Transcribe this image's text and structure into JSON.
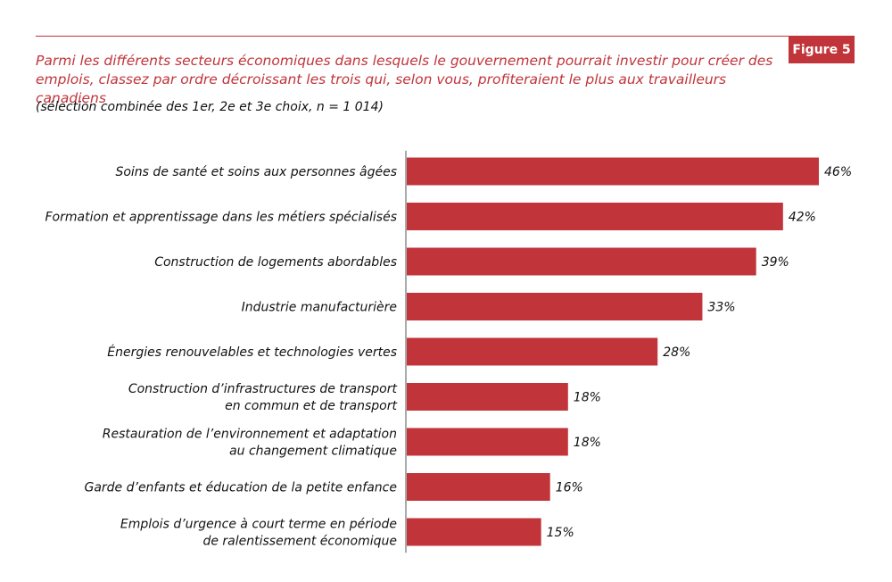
{
  "figure_label": "Figure 5",
  "colors": {
    "accent": "#c0343a",
    "bar": "#c0343a",
    "text": "#111111",
    "axis": "#555555"
  },
  "chart_data": {
    "type": "bar",
    "orientation": "horizontal",
    "title": "Parmi les différents secteurs économiques dans lesquels le gouvernement pourrait investir pour créer des emplois, classez par ordre décroissant les trois qui, selon vous, profiteraient le plus aux travailleurs canadiens",
    "subtitle": "(sélection combinée des 1er, 2e et 3e choix, n = 1 014)",
    "xlim": [
      0,
      46
    ],
    "grid": false,
    "categories": [
      [
        "Soins de santé et soins aux personnes âgées"
      ],
      [
        "Formation et apprentissage dans les métiers spécialisés"
      ],
      [
        "Construction de logements abordables"
      ],
      [
        "Industrie manufacturière"
      ],
      [
        "Énergies renouvelables et technologies vertes"
      ],
      [
        "Construction d’infrastructures de transport",
        "en commun et de transport"
      ],
      [
        "Restauration de l’environnement et adaptation",
        "au changement climatique"
      ],
      [
        "Garde d’enfants et éducation de la petite enfance"
      ],
      [
        "Emplois d’urgence à court terme en période",
        "de ralentissement économique"
      ]
    ],
    "values": [
      46,
      42,
      39,
      33,
      28,
      18,
      18,
      16,
      15
    ],
    "value_labels": [
      "46%",
      "42%",
      "39%",
      "33%",
      "28%",
      "18%",
      "18%",
      "16%",
      "15%"
    ]
  }
}
